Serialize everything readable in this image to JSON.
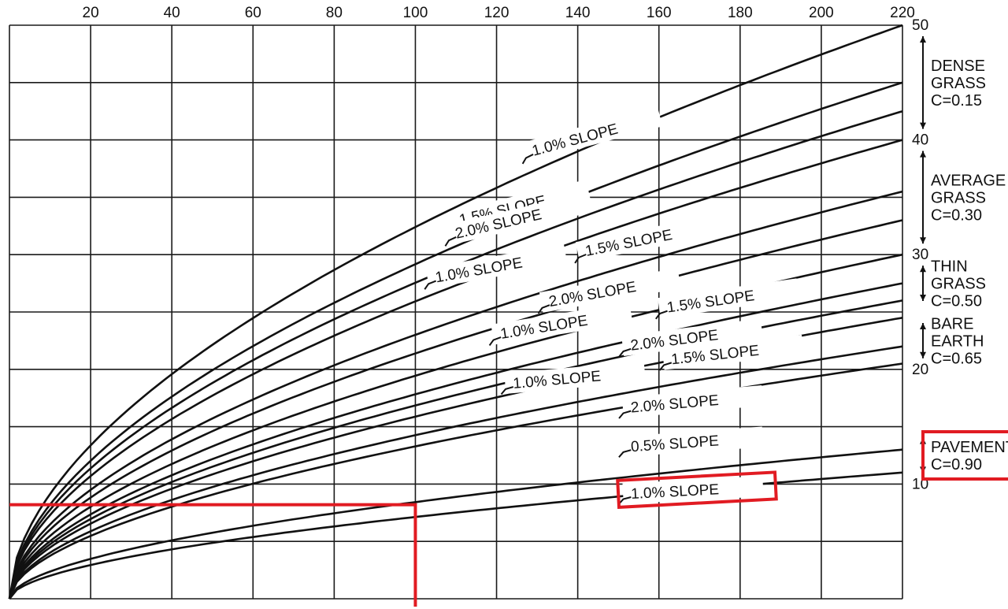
{
  "chart_data": {
    "type": "line",
    "title": "",
    "xlabel": "",
    "ylabel": "",
    "xlim": [
      0,
      220
    ],
    "ylim": [
      0,
      50
    ],
    "x_ticks_top": [
      "20",
      "40",
      "60",
      "80",
      "100",
      "120",
      "140",
      "160",
      "180",
      "200",
      "220"
    ],
    "y_ticks_right": [
      "50",
      "40",
      "30",
      "20",
      "10"
    ],
    "grid": true,
    "series": [
      {
        "name": "1.0% SLOPE",
        "surface": "DENSE GRASS",
        "x": [
          0,
          220
        ],
        "y": [
          0,
          50
        ]
      },
      {
        "name": "1.5% SLOPE",
        "surface": "DENSE GRASS",
        "x": [
          0,
          220
        ],
        "y": [
          0,
          45
        ]
      },
      {
        "name": "2.0% SLOPE",
        "surface": "DENSE GRASS",
        "x": [
          0,
          220
        ],
        "y": [
          0,
          42.5
        ]
      },
      {
        "name": "1.0% SLOPE",
        "surface": "AVERAGE GRASS",
        "x": [
          0,
          220
        ],
        "y": [
          0,
          40
        ]
      },
      {
        "name": "1.5% SLOPE",
        "surface": "AVERAGE GRASS",
        "x": [
          0,
          220
        ],
        "y": [
          0,
          35.5
        ]
      },
      {
        "name": "2.0% SLOPE",
        "surface": "AVERAGE GRASS",
        "x": [
          0,
          220
        ],
        "y": [
          0,
          33
        ]
      },
      {
        "name": "1.0% SLOPE",
        "surface": "THIN GRASS",
        "x": [
          0,
          220
        ],
        "y": [
          0,
          30
        ]
      },
      {
        "name": "1.5% SLOPE",
        "surface": "THIN GRASS",
        "x": [
          0,
          220
        ],
        "y": [
          0,
          27.5
        ]
      },
      {
        "name": "2.0% SLOPE",
        "surface": "THIN GRASS",
        "x": [
          0,
          220
        ],
        "y": [
          0,
          26
        ]
      },
      {
        "name": "1.0% SLOPE",
        "surface": "BARE EARTH",
        "x": [
          0,
          220
        ],
        "y": [
          0,
          24.5
        ]
      },
      {
        "name": "1.5% SLOPE",
        "surface": "BARE EARTH",
        "x": [
          0,
          220
        ],
        "y": [
          0,
          22
        ]
      },
      {
        "name": "2.0% SLOPE",
        "surface": "BARE EARTH",
        "x": [
          0,
          220
        ],
        "y": [
          0,
          20.5
        ]
      },
      {
        "name": "0.5% SLOPE",
        "surface": "PAVEMENT",
        "x": [
          0,
          220
        ],
        "y": [
          0,
          13
        ]
      },
      {
        "name": "1.0% SLOPE",
        "surface": "PAVEMENT",
        "x": [
          0,
          220
        ],
        "y": [
          0,
          11
        ]
      }
    ],
    "slope_labels": [
      {
        "text": "1.0% SLOPE",
        "x": 128,
        "y": 38.5,
        "angle": -15
      },
      {
        "text": "1.5% SLOPE",
        "x": 110,
        "y": 32.5,
        "angle": -13
      },
      {
        "text": "2.0% SLOPE",
        "x": 109,
        "y": 31.3,
        "angle": -13
      },
      {
        "text": "1.0% SLOPE",
        "x": 104,
        "y": 27.5,
        "angle": -10
      },
      {
        "text": "1.5% SLOPE",
        "x": 141,
        "y": 29.8,
        "angle": -11
      },
      {
        "text": "2.0% SLOPE",
        "x": 132,
        "y": 25.4,
        "angle": -10
      },
      {
        "text": "1.0% SLOPE",
        "x": 120,
        "y": 22.6,
        "angle": -9
      },
      {
        "text": "1.5% SLOPE",
        "x": 161,
        "y": 24.9,
        "angle": -8
      },
      {
        "text": "2.0% SLOPE",
        "x": 152,
        "y": 21.6,
        "angle": -7
      },
      {
        "text": "1.0% SLOPE",
        "x": 123,
        "y": 18.3,
        "angle": -5
      },
      {
        "text": "1.5% SLOPE",
        "x": 162,
        "y": 20.4,
        "angle": -6
      },
      {
        "text": "2.0% SLOPE",
        "x": 152,
        "y": 16.2,
        "angle": -5
      },
      {
        "text": "0.5% SLOPE",
        "x": 152,
        "y": 12.8,
        "angle": -4
      },
      {
        "text": "1.0% SLOPE",
        "x": 152,
        "y": 8.7,
        "angle": -3
      }
    ],
    "surface_labels": [
      {
        "lines": [
          "DENSE",
          "GRASS",
          "C=0.15"
        ],
        "y_top": 50,
        "y_bottom": 40
      },
      {
        "lines": [
          "AVERAGE",
          "GRASS",
          "C=0.30"
        ],
        "y_top": 40,
        "y_bottom": 30
      },
      {
        "lines": [
          "THIN",
          "GRASS",
          "C=0.50"
        ],
        "y_top": 30,
        "y_bottom": 25
      },
      {
        "lines": [
          "BARE",
          "EARTH",
          "C=0.65"
        ],
        "y_top": 25,
        "y_bottom": 20
      },
      {
        "lines": [
          "PAVEMENT",
          "C=0.90"
        ],
        "y_top": 15,
        "y_bottom": 10
      }
    ],
    "annotations": {
      "reference_line": {
        "x": 100,
        "y": 8.2
      },
      "highlight_label_index": 13,
      "highlight_surface_index": 4,
      "highlight_color": "#e11b22"
    }
  }
}
